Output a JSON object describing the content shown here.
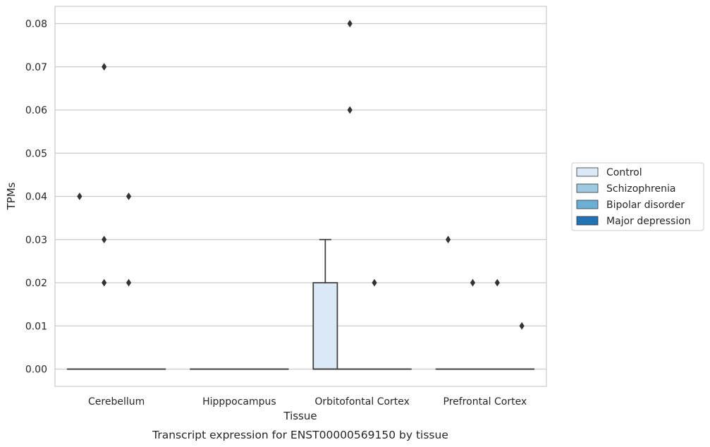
{
  "caption": "Transcript expression for ENST00000569150 by tissue",
  "chart_data": {
    "type": "box",
    "xlabel": "Tissue",
    "ylabel": "TPMs",
    "ylim": [
      -0.004,
      0.084
    ],
    "yticks": [
      "0.00",
      "0.01",
      "0.02",
      "0.03",
      "0.04",
      "0.05",
      "0.06",
      "0.07",
      "0.08"
    ],
    "grid": true,
    "legend_position": "right",
    "categories": [
      "Cerebellum",
      "Hipppocampus",
      "Orbitofontal Cortex",
      "Prefrontal Cortex"
    ],
    "series": [
      {
        "name": "Control",
        "color": "#dbe9f6",
        "boxes": [
          {
            "category": "Cerebellum",
            "q1": 0,
            "median": 0,
            "q3": 0,
            "whisker_low": 0,
            "whisker_high": 0,
            "outliers": [
              0.04
            ]
          },
          {
            "category": "Hipppocampus",
            "q1": 0,
            "median": 0,
            "q3": 0,
            "whisker_low": 0,
            "whisker_high": 0,
            "outliers": []
          },
          {
            "category": "Orbitofontal Cortex",
            "q1": 0,
            "median": 0,
            "q3": 0.02,
            "whisker_low": 0,
            "whisker_high": 0.03,
            "outliers": []
          },
          {
            "category": "Prefrontal Cortex",
            "q1": 0,
            "median": 0,
            "q3": 0,
            "whisker_low": 0,
            "whisker_high": 0,
            "outliers": [
              0.03
            ]
          }
        ]
      },
      {
        "name": "Schizophrenia",
        "color": "#9ecae1",
        "boxes": [
          {
            "category": "Cerebellum",
            "q1": 0,
            "median": 0,
            "q3": 0,
            "whisker_low": 0,
            "whisker_high": 0,
            "outliers": [
              0.07,
              0.03,
              0.02
            ]
          },
          {
            "category": "Hipppocampus",
            "q1": 0,
            "median": 0,
            "q3": 0,
            "whisker_low": 0,
            "whisker_high": 0,
            "outliers": []
          },
          {
            "category": "Orbitofontal Cortex",
            "q1": 0,
            "median": 0,
            "q3": 0,
            "whisker_low": 0,
            "whisker_high": 0,
            "outliers": [
              0.08,
              0.06
            ]
          },
          {
            "category": "Prefrontal Cortex",
            "q1": 0,
            "median": 0,
            "q3": 0,
            "whisker_low": 0,
            "whisker_high": 0,
            "outliers": [
              0.02
            ]
          }
        ]
      },
      {
        "name": "Bipolar disorder",
        "color": "#6baed6",
        "boxes": [
          {
            "category": "Cerebellum",
            "q1": 0,
            "median": 0,
            "q3": 0,
            "whisker_low": 0,
            "whisker_high": 0,
            "outliers": [
              0.04,
              0.02
            ]
          },
          {
            "category": "Hipppocampus",
            "q1": 0,
            "median": 0,
            "q3": 0,
            "whisker_low": 0,
            "whisker_high": 0,
            "outliers": []
          },
          {
            "category": "Orbitofontal Cortex",
            "q1": 0,
            "median": 0,
            "q3": 0,
            "whisker_low": 0,
            "whisker_high": 0,
            "outliers": [
              0.02
            ]
          },
          {
            "category": "Prefrontal Cortex",
            "q1": 0,
            "median": 0,
            "q3": 0,
            "whisker_low": 0,
            "whisker_high": 0,
            "outliers": [
              0.02
            ]
          }
        ]
      },
      {
        "name": "Major depression",
        "color": "#2171b5",
        "boxes": [
          {
            "category": "Cerebellum",
            "q1": 0,
            "median": 0,
            "q3": 0,
            "whisker_low": 0,
            "whisker_high": 0,
            "outliers": []
          },
          {
            "category": "Hipppocampus",
            "q1": 0,
            "median": 0,
            "q3": 0,
            "whisker_low": 0,
            "whisker_high": 0,
            "outliers": []
          },
          {
            "category": "Orbitofontal Cortex",
            "q1": 0,
            "median": 0,
            "q3": 0,
            "whisker_low": 0,
            "whisker_high": 0,
            "outliers": []
          },
          {
            "category": "Prefrontal Cortex",
            "q1": 0,
            "median": 0,
            "q3": 0,
            "whisker_low": 0,
            "whisker_high": 0,
            "outliers": [
              0.01
            ]
          }
        ]
      }
    ]
  }
}
